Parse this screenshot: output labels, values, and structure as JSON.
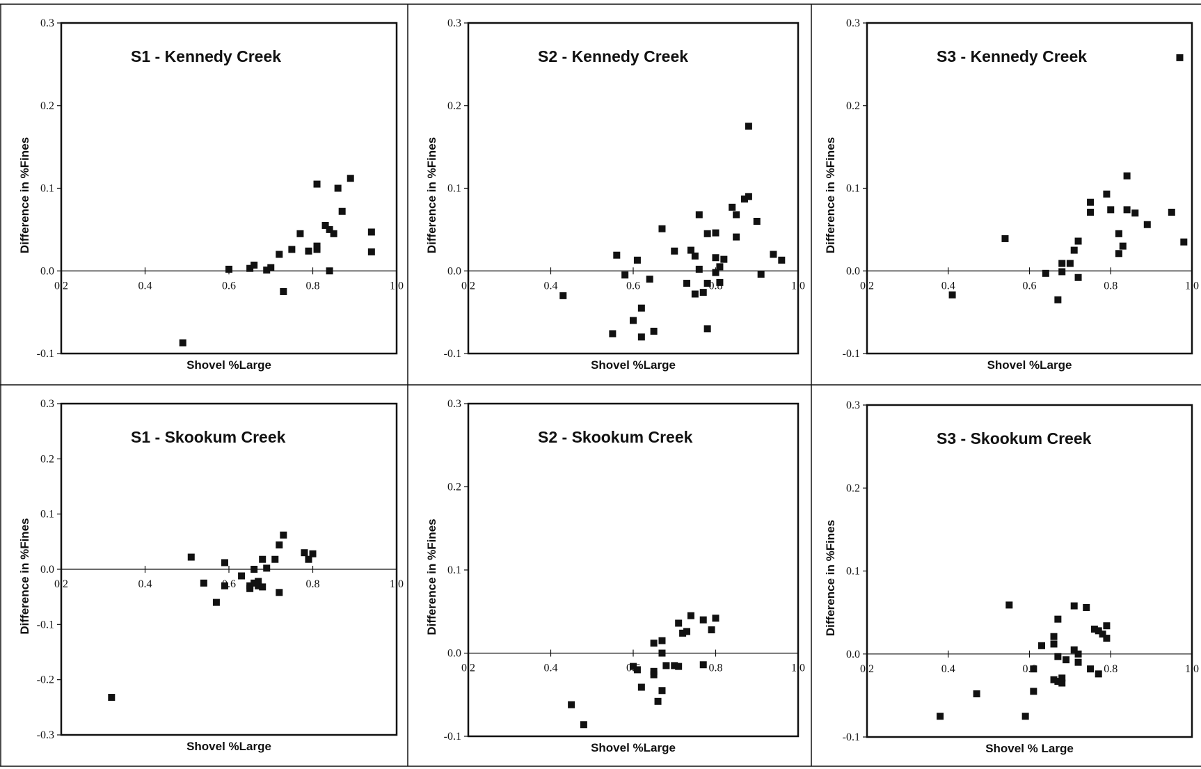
{
  "chart_data": [
    {
      "type": "scatter",
      "title": "S1 - Kennedy Creek",
      "xlabel": "Shovel %Large",
      "ylabel": "Difference in %Fines",
      "xlim": [
        0.2,
        1.0
      ],
      "ylim": [
        -0.1,
        0.3
      ],
      "xticks": [
        "0.2",
        "0.4",
        "0.6",
        "0.8",
        "1.0"
      ],
      "yticks": [
        "-0.1",
        "0.0",
        "0.1",
        "0.2",
        "0.3"
      ],
      "grid": false,
      "points": [
        [
          0.49,
          -0.087
        ],
        [
          0.6,
          0.002
        ],
        [
          0.65,
          0.003
        ],
        [
          0.66,
          0.007
        ],
        [
          0.69,
          0.001
        ],
        [
          0.7,
          0.004
        ],
        [
          0.72,
          0.02
        ],
        [
          0.73,
          -0.025
        ],
        [
          0.75,
          0.026
        ],
        [
          0.77,
          0.045
        ],
        [
          0.79,
          0.024
        ],
        [
          0.81,
          0.105
        ],
        [
          0.81,
          0.026
        ],
        [
          0.81,
          0.03
        ],
        [
          0.83,
          0.055
        ],
        [
          0.84,
          0.05
        ],
        [
          0.84,
          0.0
        ],
        [
          0.85,
          0.045
        ],
        [
          0.86,
          0.1
        ],
        [
          0.87,
          0.072
        ],
        [
          0.89,
          0.112
        ],
        [
          0.94,
          0.023
        ],
        [
          0.94,
          0.047
        ]
      ]
    },
    {
      "type": "scatter",
      "title": "S2 - Kennedy Creek",
      "xlabel": "Shovel %Large",
      "ylabel": "Difference in %Fines",
      "xlim": [
        0.2,
        1.0
      ],
      "ylim": [
        -0.1,
        0.3
      ],
      "xticks": [
        "0.2",
        "0.4",
        "0.6",
        "0.8",
        "1.0"
      ],
      "yticks": [
        "-0.1",
        "0.0",
        "0.1",
        "0.2",
        "0.3"
      ],
      "grid": false,
      "points": [
        [
          0.43,
          -0.03
        ],
        [
          0.55,
          -0.076
        ],
        [
          0.56,
          0.019
        ],
        [
          0.58,
          -0.005
        ],
        [
          0.6,
          -0.06
        ],
        [
          0.61,
          0.013
        ],
        [
          0.62,
          -0.045
        ],
        [
          0.62,
          -0.08
        ],
        [
          0.64,
          -0.01
        ],
        [
          0.65,
          -0.073
        ],
        [
          0.67,
          0.051
        ],
        [
          0.7,
          0.024
        ],
        [
          0.73,
          -0.015
        ],
        [
          0.74,
          0.025
        ],
        [
          0.75,
          -0.028
        ],
        [
          0.75,
          0.018
        ],
        [
          0.76,
          0.068
        ],
        [
          0.76,
          0.002
        ],
        [
          0.77,
          -0.026
        ],
        [
          0.78,
          -0.07
        ],
        [
          0.78,
          0.045
        ],
        [
          0.78,
          -0.015
        ],
        [
          0.8,
          0.046
        ],
        [
          0.8,
          0.016
        ],
        [
          0.8,
          -0.002
        ],
        [
          0.81,
          0.005
        ],
        [
          0.81,
          -0.014
        ],
        [
          0.82,
          0.014
        ],
        [
          0.84,
          0.077
        ],
        [
          0.85,
          0.068
        ],
        [
          0.85,
          0.041
        ],
        [
          0.87,
          0.087
        ],
        [
          0.88,
          0.09
        ],
        [
          0.88,
          0.175
        ],
        [
          0.9,
          0.06
        ],
        [
          0.91,
          -0.004
        ],
        [
          0.94,
          0.02
        ],
        [
          0.96,
          0.013
        ]
      ]
    },
    {
      "type": "scatter",
      "title": "S3 - Kennedy Creek",
      "xlabel": "Shovel %Large",
      "ylabel": "Difference in %Fines",
      "xlim": [
        0.2,
        1.0
      ],
      "ylim": [
        -0.1,
        0.3
      ],
      "xticks": [
        "0.2",
        "0.4",
        "0.6",
        "0.8",
        "1.0"
      ],
      "yticks": [
        "-0.1",
        "0.0",
        "0.1",
        "0.2",
        "0.3"
      ],
      "grid": false,
      "points": [
        [
          0.41,
          -0.029
        ],
        [
          0.54,
          0.039
        ],
        [
          0.64,
          -0.003
        ],
        [
          0.67,
          -0.035
        ],
        [
          0.68,
          0.009
        ],
        [
          0.68,
          -0.001
        ],
        [
          0.7,
          0.009
        ],
        [
          0.71,
          0.025
        ],
        [
          0.72,
          0.036
        ],
        [
          0.72,
          -0.008
        ],
        [
          0.75,
          0.071
        ],
        [
          0.75,
          0.083
        ],
        [
          0.79,
          0.093
        ],
        [
          0.8,
          0.074
        ],
        [
          0.82,
          0.045
        ],
        [
          0.82,
          0.021
        ],
        [
          0.83,
          0.03
        ],
        [
          0.84,
          0.115
        ],
        [
          0.84,
          0.074
        ],
        [
          0.86,
          0.07
        ],
        [
          0.89,
          0.056
        ],
        [
          0.95,
          0.071
        ],
        [
          0.98,
          0.035
        ],
        [
          0.97,
          0.258
        ]
      ]
    },
    {
      "type": "scatter",
      "title": "S1 - Skookum Creek",
      "xlabel": "Shovel %Large",
      "ylabel": "Difference in %Fines",
      "xlim": [
        0.2,
        1.0
      ],
      "ylim": [
        -0.3,
        0.3
      ],
      "xticks": [
        "0.2",
        "0.4",
        "0.6",
        "0.8",
        "1.0"
      ],
      "yticks": [
        "-0.3",
        "-0.2",
        "-0.1",
        "0.0",
        "0.1",
        "0.2",
        "0.3"
      ],
      "grid": false,
      "points": [
        [
          0.32,
          -0.232
        ],
        [
          0.51,
          0.022
        ],
        [
          0.54,
          -0.025
        ],
        [
          0.57,
          -0.06
        ],
        [
          0.59,
          -0.03
        ],
        [
          0.59,
          0.012
        ],
        [
          0.63,
          -0.012
        ],
        [
          0.65,
          -0.03
        ],
        [
          0.65,
          -0.035
        ],
        [
          0.66,
          -0.025
        ],
        [
          0.66,
          0.0
        ],
        [
          0.67,
          -0.03
        ],
        [
          0.67,
          -0.022
        ],
        [
          0.68,
          -0.032
        ],
        [
          0.68,
          0.018
        ],
        [
          0.69,
          0.002
        ],
        [
          0.71,
          0.018
        ],
        [
          0.72,
          -0.042
        ],
        [
          0.72,
          0.044
        ],
        [
          0.73,
          0.062
        ],
        [
          0.78,
          0.03
        ],
        [
          0.79,
          0.018
        ],
        [
          0.8,
          0.028
        ]
      ]
    },
    {
      "type": "scatter",
      "title": "S2 - Skookum Creek",
      "xlabel": "Shovel %Large",
      "ylabel": "Difference in %Fines",
      "xlim": [
        0.2,
        1.0
      ],
      "ylim": [
        -0.1,
        0.3
      ],
      "xticks": [
        "0.2",
        "0.4",
        "0.6",
        "0.8",
        "1.0"
      ],
      "yticks": [
        "-0.1",
        "0.0",
        "0.1",
        "0.2",
        "0.3"
      ],
      "grid": false,
      "points": [
        [
          0.45,
          -0.062
        ],
        [
          0.48,
          -0.086
        ],
        [
          0.6,
          -0.016
        ],
        [
          0.61,
          -0.02
        ],
        [
          0.62,
          -0.041
        ],
        [
          0.65,
          0.012
        ],
        [
          0.65,
          -0.022
        ],
        [
          0.65,
          -0.026
        ],
        [
          0.66,
          -0.058
        ],
        [
          0.67,
          0.015
        ],
        [
          0.67,
          0.0
        ],
        [
          0.67,
          -0.045
        ],
        [
          0.68,
          -0.015
        ],
        [
          0.7,
          -0.015
        ],
        [
          0.71,
          -0.016
        ],
        [
          0.71,
          0.036
        ],
        [
          0.72,
          0.024
        ],
        [
          0.73,
          0.026
        ],
        [
          0.74,
          0.045
        ],
        [
          0.77,
          0.04
        ],
        [
          0.77,
          -0.014
        ],
        [
          0.79,
          0.028
        ],
        [
          0.8,
          0.042
        ]
      ]
    },
    {
      "type": "scatter",
      "title": "S3 - Skookum Creek",
      "xlabel": "Shovel % Large",
      "ylabel": "Difference in %Fines",
      "xlim": [
        0.2,
        1.0
      ],
      "ylim": [
        -0.1,
        0.3
      ],
      "xticks": [
        "0.2",
        "0.4",
        "0.6",
        "0.8",
        "1.0"
      ],
      "yticks": [
        "-0.1",
        "0.0",
        "0.1",
        "0.2",
        "0.3"
      ],
      "grid": false,
      "points": [
        [
          0.38,
          -0.075
        ],
        [
          0.47,
          -0.048
        ],
        [
          0.55,
          0.059
        ],
        [
          0.59,
          -0.075
        ],
        [
          0.61,
          -0.018
        ],
        [
          0.61,
          -0.045
        ],
        [
          0.63,
          0.01
        ],
        [
          0.66,
          0.021
        ],
        [
          0.66,
          0.012
        ],
        [
          0.66,
          -0.031
        ],
        [
          0.67,
          0.042
        ],
        [
          0.67,
          -0.003
        ],
        [
          0.67,
          -0.033
        ],
        [
          0.68,
          -0.035
        ],
        [
          0.68,
          -0.029
        ],
        [
          0.69,
          -0.007
        ],
        [
          0.71,
          0.058
        ],
        [
          0.71,
          0.005
        ],
        [
          0.72,
          0.0
        ],
        [
          0.72,
          -0.01
        ],
        [
          0.74,
          0.056
        ],
        [
          0.75,
          -0.018
        ],
        [
          0.76,
          0.03
        ],
        [
          0.77,
          0.028
        ],
        [
          0.77,
          -0.024
        ],
        [
          0.78,
          0.024
        ],
        [
          0.79,
          0.019
        ],
        [
          0.79,
          0.034
        ]
      ]
    }
  ]
}
